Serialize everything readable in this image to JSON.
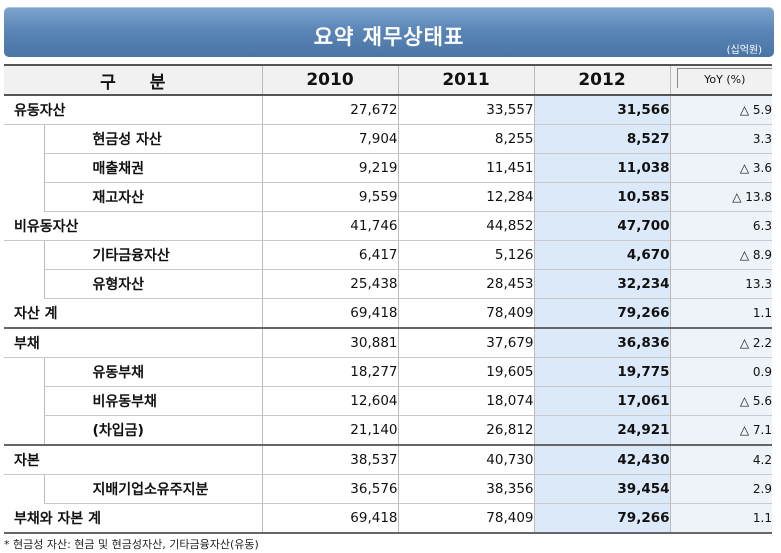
{
  "title": "요약 재무상태표",
  "unit": "(십억원)",
  "header": {
    "label": "구 분",
    "years": [
      "2010",
      "2011",
      "2012"
    ],
    "yoy": "YoY (%)"
  },
  "rows": [
    {
      "label": "유동자산",
      "indent": false,
      "v2010": "27,672",
      "v2011": "33,557",
      "v2012": "31,566",
      "yoy": "△ 5.9"
    },
    {
      "label": "현금성 자산",
      "indent": true,
      "v2010": "7,904",
      "v2011": "8,255",
      "v2012": "8,527",
      "yoy": "3.3"
    },
    {
      "label": "매출채권",
      "indent": true,
      "v2010": "9,219",
      "v2011": "11,451",
      "v2012": "11,038",
      "yoy": "△ 3.6"
    },
    {
      "label": "재고자산",
      "indent": true,
      "v2010": "9,559",
      "v2011": "12,284",
      "v2012": "10,585",
      "yoy": "△ 13.8"
    },
    {
      "label": "비유동자산",
      "indent": false,
      "v2010": "41,746",
      "v2011": "44,852",
      "v2012": "47,700",
      "yoy": "6.3"
    },
    {
      "label": "기타금융자산",
      "indent": true,
      "v2010": "6,417",
      "v2011": "5,126",
      "v2012": "4,670",
      "yoy": "△ 8.9"
    },
    {
      "label": "유형자산",
      "indent": true,
      "v2010": "25,438",
      "v2011": "28,453",
      "v2012": "32,234",
      "yoy": "13.3"
    },
    {
      "label": "자산 계",
      "indent": false,
      "v2010": "69,418",
      "v2011": "78,409",
      "v2012": "79,266",
      "yoy": "1.1",
      "group_end": true
    },
    {
      "label": "부채",
      "indent": false,
      "v2010": "30,881",
      "v2011": "37,679",
      "v2012": "36,836",
      "yoy": "△ 2.2"
    },
    {
      "label": "유동부채",
      "indent": true,
      "v2010": "18,277",
      "v2011": "19,605",
      "v2012": "19,775",
      "yoy": "0.9"
    },
    {
      "label": "비유동부채",
      "indent": true,
      "v2010": "12,604",
      "v2011": "18,074",
      "v2012": "17,061",
      "yoy": "△ 5.6"
    },
    {
      "label": "(차입금)",
      "indent": true,
      "v2010": "21,140",
      "v2011": "26,812",
      "v2012": "24,921",
      "yoy": "△ 7.1",
      "group_end": true
    },
    {
      "label": "자본",
      "indent": false,
      "v2010": "38,537",
      "v2011": "40,730",
      "v2012": "42,430",
      "yoy": "4.2"
    },
    {
      "label": "지배기업소유주지분",
      "indent": true,
      "v2010": "36,576",
      "v2011": "38,356",
      "v2012": "39,454",
      "yoy": "2.9"
    },
    {
      "label": "부채와 자본 계",
      "indent": false,
      "v2010": "69,418",
      "v2011": "78,409",
      "v2012": "79,266",
      "yoy": "1.1",
      "last": true
    }
  ],
  "footnote": "* 현금성 자산: 현금 및 현금성자산, 기타금융자산(유동)"
}
